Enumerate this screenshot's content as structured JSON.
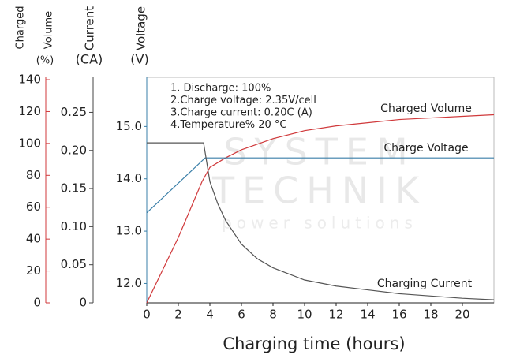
{
  "chart_data": {
    "type": "line",
    "x_label": "Charging time (hours)",
    "y_label": [
      "Charged",
      "Volume",
      "(%)"
    ],
    "y2_label": [
      "Current",
      "(CA)"
    ],
    "y3_label": [
      "Voltage",
      "(V)"
    ],
    "annotations": [
      "1. Discharge: 100%",
      "2.Charge voltage: 2.35V/cell",
      "3.Charge current: 0.20C (A)",
      "4.Temperature% 20 °C"
    ],
    "watermark": [
      "SYSTEM",
      "TECHNIK",
      "power solutions"
    ],
    "xlim": [
      0,
      22
    ],
    "xticks": [
      0,
      2,
      4,
      6,
      8,
      10,
      12,
      14,
      16,
      18,
      20
    ],
    "ylim": [
      0,
      141.5
    ],
    "yticks": [
      0,
      20,
      40,
      60,
      80,
      100,
      120,
      140
    ],
    "y2lim": [
      0,
      0.296
    ],
    "y2ticks": [
      0,
      0.05,
      {
        "value": 0.1,
        "label": "0.10"
      },
      0.15,
      {
        "value": 0.2,
        "label": "0.20"
      },
      0.25
    ],
    "y3lim": [
      11.63,
      15.94
    ],
    "y3ticks": [
      {
        "value": 12,
        "label": "12.0"
      },
      {
        "value": 13,
        "label": "13.0"
      },
      {
        "value": 14,
        "label": "14.0"
      },
      {
        "value": 15,
        "label": "15.0"
      }
    ],
    "series": [
      {
        "name": "Charged Volume",
        "color": "#d0393b",
        "axis": "y",
        "x": [
          0,
          2,
          3.5,
          4,
          5,
          6,
          8,
          10,
          12,
          14,
          16,
          18,
          20,
          22
        ],
        "values": [
          0,
          41,
          76,
          85,
          91,
          96,
          103,
          108,
          111,
          113,
          115,
          116,
          117,
          118
        ]
      },
      {
        "name": "Charge Voltage",
        "color": "#3a7fa8",
        "axis": "y3",
        "x": [
          0,
          3.7,
          22
        ],
        "values": [
          13.35,
          14.4,
          14.4
        ]
      },
      {
        "name": "Charging Current",
        "color": "#555555",
        "axis": "y2",
        "x": [
          0,
          3.6,
          4,
          4.5,
          5,
          6,
          7,
          8,
          10,
          12,
          14,
          16,
          18,
          20,
          22
        ],
        "values": [
          0.21,
          0.21,
          0.159,
          0.13,
          0.108,
          0.077,
          0.058,
          0.046,
          0.03,
          0.022,
          0.017,
          0.012,
          0.009,
          0.006,
          0.004
        ]
      }
    ]
  }
}
